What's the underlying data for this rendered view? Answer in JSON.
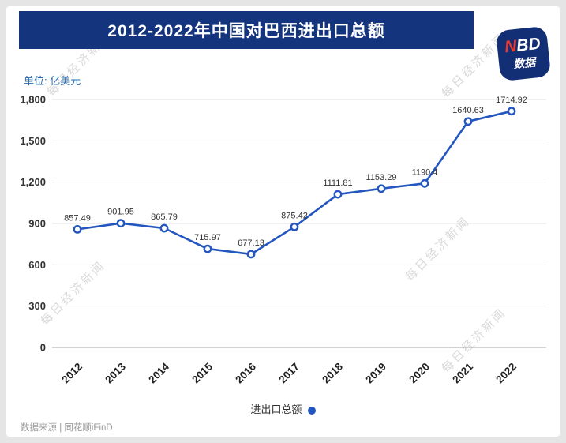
{
  "page": {
    "header": {
      "title": "2012-2022年中国对巴西进出口总额"
    },
    "logo": {
      "line1_red": "N",
      "line1_white": "BD",
      "line2": "数据"
    },
    "unit_label": "单位: 亿美元",
    "legend": {
      "label": "进出口总额"
    },
    "source": "数据来源 | 同花顺iFinD",
    "watermark_text": "每日经济新闻"
  },
  "chart_data": {
    "type": "line",
    "title": "2012-2022年中国对巴西进出口总额",
    "unit": "亿美元",
    "categories": [
      "2012",
      "2013",
      "2014",
      "2015",
      "2016",
      "2017",
      "2018",
      "2019",
      "2020",
      "2021",
      "2022"
    ],
    "series": [
      {
        "name": "进出口总额",
        "color": "#2456c0",
        "values": [
          857.49,
          901.95,
          865.79,
          715.97,
          677.13,
          875.42,
          1111.81,
          1153.29,
          1190.4,
          1640.63,
          1714.92
        ]
      }
    ],
    "point_labels": [
      "857.49",
      "901.95",
      "865.79",
      "715.97",
      "677.13",
      "875.42",
      "1111.81",
      "1153.29",
      "1190.4",
      "1640.63",
      "1714.92"
    ],
    "xlabel": "",
    "ylabel": "亿美元",
    "ylim": [
      0,
      1800
    ],
    "ytick_step": 300,
    "ytick_labels": [
      "0",
      "300",
      "600",
      "900",
      "1,200",
      "1,500",
      "1,800"
    ],
    "grid": true,
    "legend_position": "bottom"
  },
  "colors": {
    "header_bg": "#14347d",
    "logo_bg": "#122e75",
    "logo_red": "#e8392e",
    "accent": "#2456c0"
  }
}
